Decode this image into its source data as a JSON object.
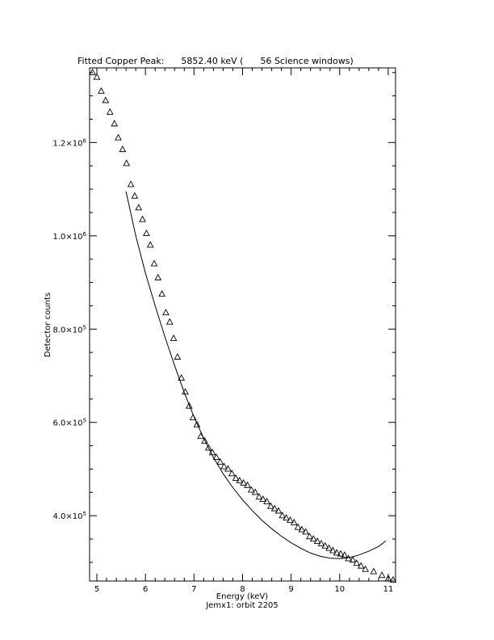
{
  "chart_data": {
    "type": "scatter",
    "title": "Fitted Copper Peak:      5852.40 keV (      56 Science windows)",
    "xlabel": "Energy (keV)",
    "subtitle": "Jemx1: orbit 2205",
    "ylabel": "Detector counts",
    "xlim": [
      4.85,
      11.15
    ],
    "ylim": [
      260000,
      1360000
    ],
    "x_ticks": [
      {
        "value": 5,
        "label": "5"
      },
      {
        "value": 6,
        "label": "6"
      },
      {
        "value": 7,
        "label": "7"
      },
      {
        "value": 8,
        "label": "8"
      },
      {
        "value": 9,
        "label": "9"
      },
      {
        "value": 10,
        "label": "10"
      },
      {
        "value": 11,
        "label": "11"
      }
    ],
    "y_ticks": [
      {
        "value": 400000,
        "mantissa": "4.0",
        "exponent": "5"
      },
      {
        "value": 600000,
        "mantissa": "6.0",
        "exponent": "5"
      },
      {
        "value": 800000,
        "mantissa": "8.0",
        "exponent": "5"
      },
      {
        "value": 1000000,
        "mantissa": "1.0",
        "exponent": "6"
      },
      {
        "value": 1200000,
        "mantissa": "1.2",
        "exponent": "6"
      }
    ],
    "series": [
      {
        "marker": "triangle",
        "x": [
          4.91,
          5.0,
          5.09,
          5.18,
          5.27,
          5.36,
          5.44,
          5.53,
          5.61,
          5.7,
          5.78,
          5.86,
          5.94,
          6.02,
          6.1,
          6.18,
          6.26,
          6.34,
          6.42,
          6.5,
          6.58,
          6.66,
          6.74,
          6.82,
          6.9,
          6.98,
          7.06,
          7.14,
          7.22,
          7.3,
          7.38,
          7.46,
          7.54,
          7.62,
          7.7,
          7.78,
          7.86,
          7.94,
          8.02,
          8.1,
          8.18,
          8.26,
          8.34,
          8.42,
          8.5,
          8.58,
          8.66,
          8.74,
          8.82,
          8.9,
          8.98,
          9.06,
          9.14,
          9.22,
          9.3,
          9.38,
          9.46,
          9.54,
          9.62,
          9.7,
          9.78,
          9.86,
          9.94,
          10.02,
          10.1,
          10.18,
          10.27,
          10.35,
          10.44,
          10.53,
          10.7,
          10.87,
          11.0,
          11.1
        ],
        "y": [
          1350000,
          1340000,
          1310000,
          1290000,
          1265000,
          1240000,
          1210000,
          1185000,
          1155000,
          1110000,
          1085000,
          1060000,
          1035000,
          1005000,
          980000,
          940000,
          910000,
          875000,
          835000,
          815000,
          780000,
          740000,
          695000,
          665000,
          635000,
          610000,
          595000,
          570000,
          560000,
          545000,
          535000,
          525000,
          515000,
          505000,
          500000,
          490000,
          480000,
          475000,
          470000,
          465000,
          455000,
          450000,
          440000,
          435000,
          430000,
          420000,
          415000,
          410000,
          400000,
          395000,
          390000,
          385000,
          375000,
          370000,
          365000,
          355000,
          350000,
          345000,
          340000,
          335000,
          330000,
          325000,
          320000,
          318000,
          315000,
          308000,
          305000,
          298000,
          292000,
          285000,
          280000,
          272000,
          265000,
          262000
        ]
      },
      {
        "marker": "line",
        "x": [
          5.6,
          5.8,
          6.0,
          6.2,
          6.4,
          6.6,
          6.8,
          7.0,
          7.2,
          7.4,
          7.6,
          7.8,
          8.0,
          8.2,
          8.4,
          8.6,
          8.8,
          9.0,
          9.2,
          9.4,
          9.6,
          9.8,
          10.0,
          10.2,
          10.4,
          10.6,
          10.8,
          10.95
        ],
        "y": [
          1095000,
          1000000,
          920000,
          850000,
          784000,
          722000,
          664000,
          612000,
          566000,
          525000,
          490000,
          460000,
          434000,
          411000,
          390000,
          372000,
          356000,
          342000,
          330000,
          320000,
          313000,
          309000,
          308000,
          310000,
          316000,
          324000,
          334000,
          346000
        ]
      }
    ]
  }
}
